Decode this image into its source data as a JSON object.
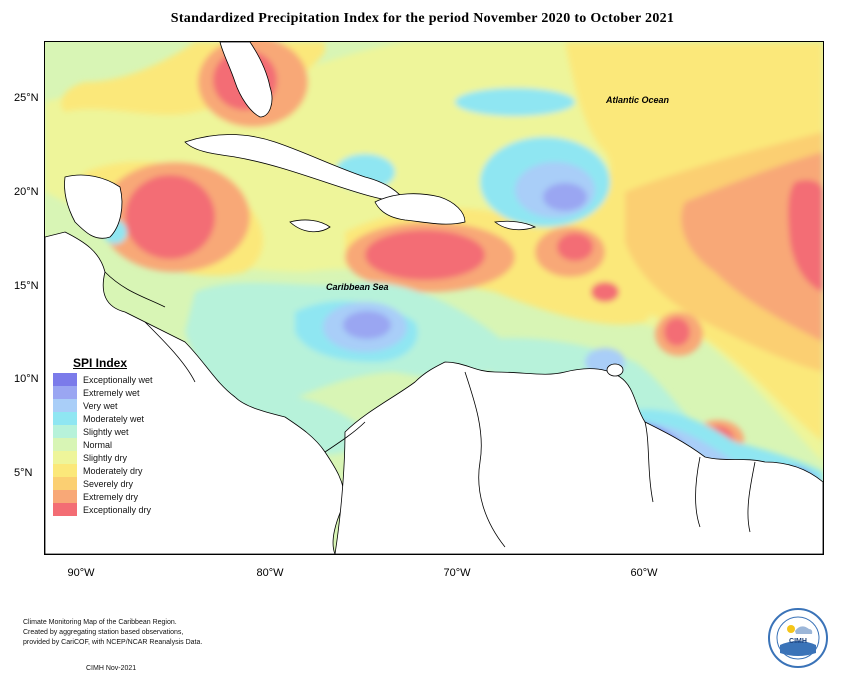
{
  "title": "Standardized Precipitation Index for the period November 2020 to October 2021",
  "axes": {
    "lat_labels": [
      "25°N",
      "20°N",
      "15°N",
      "10°N",
      "5°N"
    ],
    "lon_labels": [
      "90°W",
      "80°W",
      "70°W",
      "60°W"
    ]
  },
  "map_labels": {
    "atlantic": "Atlantic Ocean",
    "caribbean": "Caribbean Sea"
  },
  "legend": {
    "title": "SPI Index",
    "items": [
      {
        "label": "Exceptionally wet",
        "color": "#7b7bea"
      },
      {
        "label": "Extremely wet",
        "color": "#9aa6f2"
      },
      {
        "label": "Very wet",
        "color": "#a9cef8"
      },
      {
        "label": "Moderately wet",
        "color": "#8fe6f2"
      },
      {
        "label": "Slightly wet",
        "color": "#b7f2da"
      },
      {
        "label": "Normal",
        "color": "#d8f5b5"
      },
      {
        "label": "Slightly dry",
        "color": "#eef59a"
      },
      {
        "label": "Moderately dry",
        "color": "#fbe87a"
      },
      {
        "label": "Severely dry",
        "color": "#fbcf72"
      },
      {
        "label": "Extremely dry",
        "color": "#f8a877"
      },
      {
        "label": "Exceptionally dry",
        "color": "#f36d74"
      }
    ]
  },
  "footnote": {
    "lines": [
      "Climate Monitoring Map of the Caribbean Region.",
      "Created by aggregating station based observations,",
      "provided by CariCOF, with NCEP/NCAR Reanalysis Data."
    ],
    "date": "CIMH Nov-2021"
  },
  "logo": {
    "text": "CIMH"
  }
}
